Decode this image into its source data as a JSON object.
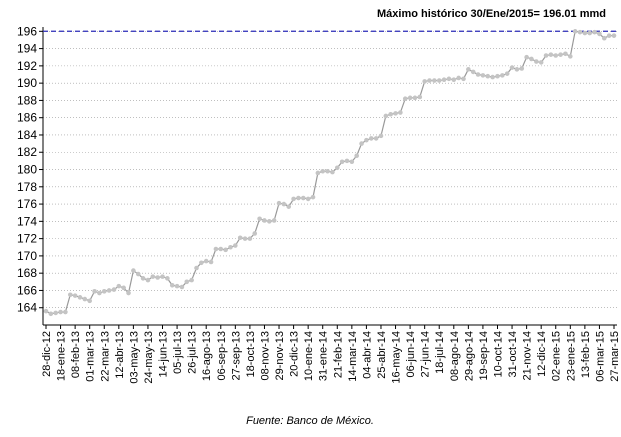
{
  "chart_data": {
    "type": "line",
    "annotation": "Máximo histórico 30/Ene/2015= 196.01 mmd",
    "max_line": 196.01,
    "source": "Fuente: Banco de México.",
    "categories": [
      "28-dic-12",
      null,
      null,
      "18-ene-13",
      null,
      null,
      "08-feb-13",
      null,
      null,
      "01-mar-13",
      null,
      null,
      "22-mar-13",
      null,
      null,
      "12-abr-13",
      null,
      null,
      "03-may-13",
      null,
      null,
      "24-may-13",
      null,
      null,
      "14-jun-13",
      null,
      null,
      "05-jul-13",
      null,
      null,
      "26-jul-13",
      null,
      null,
      "16-ago-13",
      null,
      null,
      "06-sep-13",
      null,
      null,
      "27-sep-13",
      null,
      null,
      "18-oct-13",
      null,
      null,
      "08-nov-13",
      null,
      null,
      "29-nov-13",
      null,
      null,
      "20-dic-13",
      null,
      null,
      "10-ene-14",
      null,
      null,
      "31-ene-14",
      null,
      null,
      "21-feb-14",
      null,
      null,
      "14-mar-14",
      null,
      null,
      "04-abr-14",
      null,
      null,
      "25-abr-14",
      null,
      null,
      "16-may-14",
      null,
      null,
      "06-jun-14",
      null,
      null,
      "27-jun-14",
      null,
      null,
      "18-jul-14",
      null,
      null,
      "08-ago-14",
      null,
      null,
      "29-ago-14",
      null,
      null,
      "19-sep-14",
      null,
      null,
      "10-oct-14",
      null,
      null,
      "31-oct-14",
      null,
      null,
      "21-nov-14",
      null,
      null,
      "12-dic-14",
      null,
      null,
      "02-ene-15",
      null,
      null,
      "23-ene-15",
      null,
      null,
      "13-feb-15",
      null,
      null,
      "06-mar-15",
      null,
      null,
      "27-mar-15"
    ],
    "series": [
      {
        "color": "#999999",
        "marker_color": "#c4c4c4",
        "values": [
          163.6,
          163.3,
          163.4,
          163.5,
          163.5,
          165.5,
          165.4,
          165.2,
          165.0,
          164.8,
          165.9,
          165.7,
          165.9,
          166.0,
          166.1,
          166.5,
          166.3,
          165.7,
          168.3,
          167.9,
          167.4,
          167.2,
          167.6,
          167.5,
          167.6,
          167.4,
          166.6,
          166.5,
          166.4,
          167.0,
          167.2,
          168.6,
          169.2,
          169.4,
          169.3,
          170.8,
          170.8,
          170.7,
          171.0,
          171.2,
          172.1,
          172.0,
          172.0,
          172.6,
          174.3,
          174.1,
          174.0,
          174.1,
          176.1,
          176.0,
          175.7,
          176.6,
          176.7,
          176.7,
          176.6,
          176.8,
          179.6,
          179.8,
          179.8,
          179.7,
          180.2,
          180.9,
          181.0,
          180.9,
          181.6,
          183.0,
          183.4,
          183.6,
          183.6,
          183.9,
          186.2,
          186.4,
          186.5,
          186.6,
          188.2,
          188.3,
          188.3,
          188.4,
          190.2,
          190.3,
          190.3,
          190.3,
          190.4,
          190.5,
          190.4,
          190.6,
          190.5,
          191.6,
          191.3,
          191.0,
          190.9,
          190.8,
          190.7,
          190.8,
          190.9,
          191.1,
          191.8,
          191.6,
          191.7,
          193.0,
          192.8,
          192.5,
          192.4,
          193.2,
          193.3,
          193.2,
          193.3,
          193.4,
          193.1,
          196.0,
          195.9,
          195.8,
          195.8,
          195.9,
          195.7,
          195.2,
          195.5,
          195.5
        ]
      }
    ],
    "ylim": [
      162,
      196.5
    ],
    "yticks": [
      164,
      166,
      168,
      170,
      172,
      174,
      176,
      178,
      180,
      182,
      184,
      186,
      188,
      190,
      192,
      194,
      196
    ],
    "grid": true,
    "max_line_color": "#2b2bb8"
  }
}
